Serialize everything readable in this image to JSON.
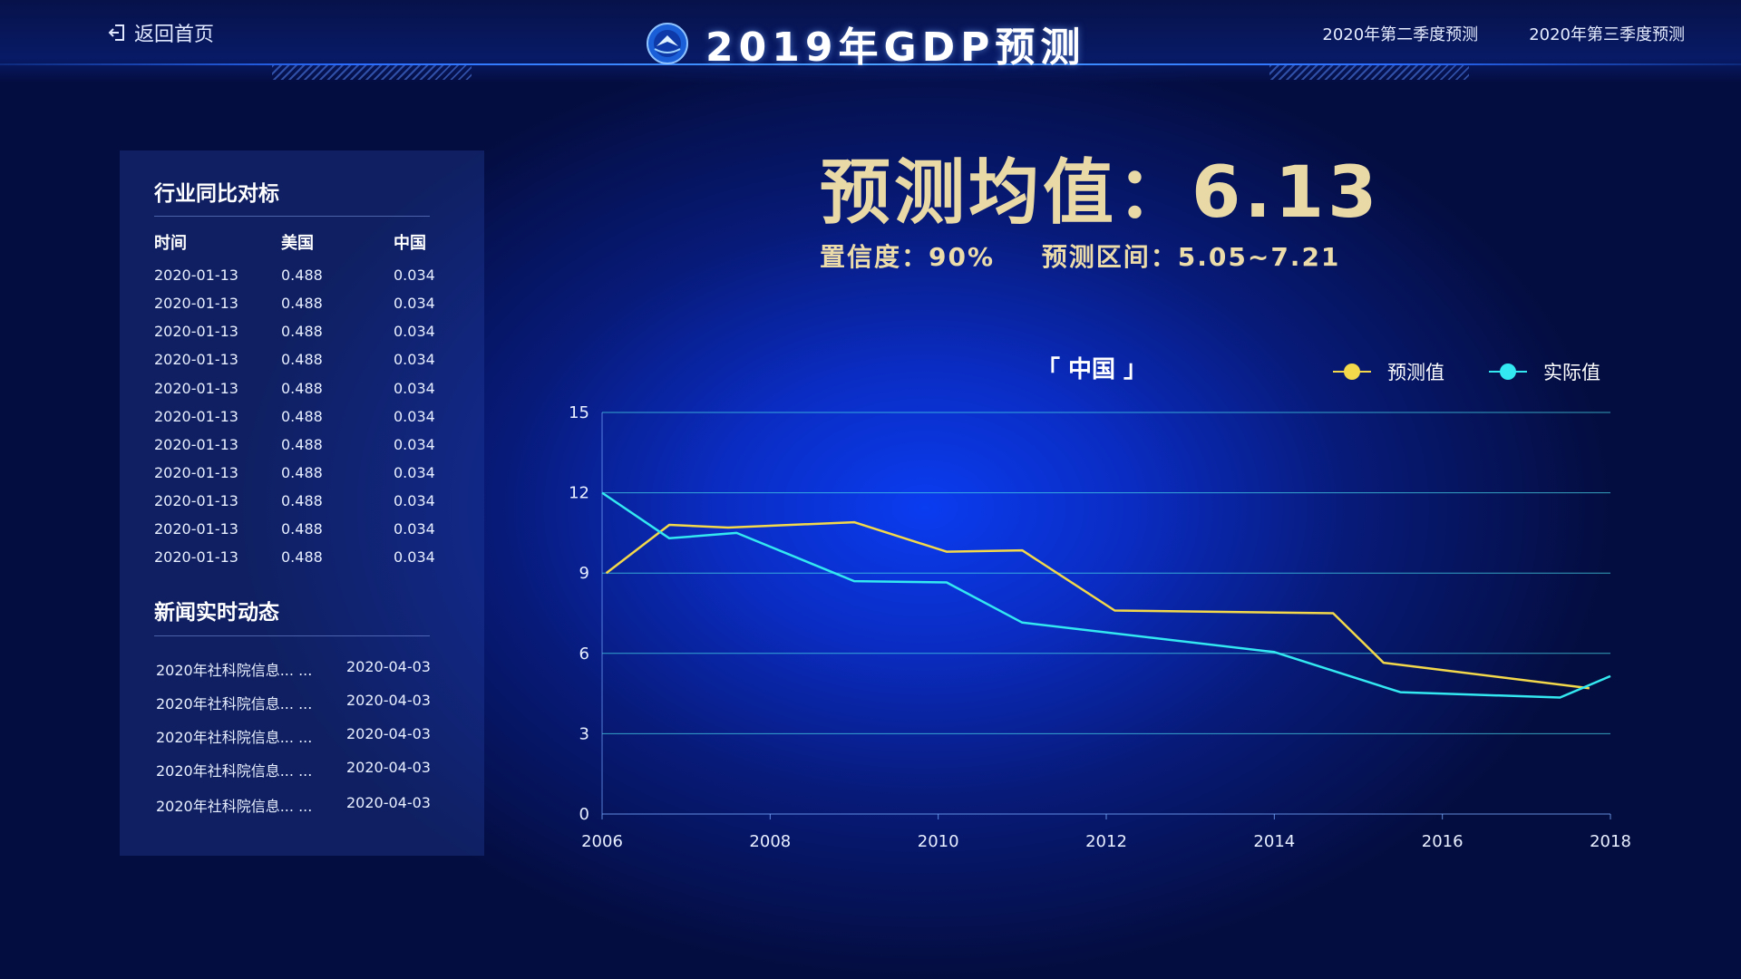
{
  "header": {
    "back_label": "返回首页",
    "title": "2019年GDP预测",
    "nav": [
      "2020年第二季度预测",
      "2020年第三季度预测"
    ]
  },
  "summary": {
    "mean_text": "预测均值：6.13",
    "confidence_text": "置信度：90%",
    "interval_text": "预测区间：5.05~7.21"
  },
  "industry": {
    "title": "行业同比对标",
    "columns": [
      "时间",
      "美国",
      "中国"
    ],
    "rows": [
      [
        "2020-01-13",
        "0.488",
        "0.034"
      ],
      [
        "2020-01-13",
        "0.488",
        "0.034"
      ],
      [
        "2020-01-13",
        "0.488",
        "0.034"
      ],
      [
        "2020-01-13",
        "0.488",
        "0.034"
      ],
      [
        "2020-01-13",
        "0.488",
        "0.034"
      ],
      [
        "2020-01-13",
        "0.488",
        "0.034"
      ],
      [
        "2020-01-13",
        "0.488",
        "0.034"
      ],
      [
        "2020-01-13",
        "0.488",
        "0.034"
      ],
      [
        "2020-01-13",
        "0.488",
        "0.034"
      ],
      [
        "2020-01-13",
        "0.488",
        "0.034"
      ],
      [
        "2020-01-13",
        "0.488",
        "0.034"
      ]
    ]
  },
  "news": {
    "title": "新闻实时动态",
    "items": [
      {
        "title": "2020年社科院信息... ...",
        "date": "2020-04-03"
      },
      {
        "title": "2020年社科院信息... ...",
        "date": "2020-04-03"
      },
      {
        "title": "2020年社科院信息... ...",
        "date": "2020-04-03"
      },
      {
        "title": "2020年社科院信息... ...",
        "date": "2020-04-03"
      },
      {
        "title": "2020年社科院信息... ...",
        "date": "2020-04-03"
      }
    ]
  },
  "colors": {
    "forecast": "#f2d84a",
    "actual": "#33e8f0",
    "gold_text": "#e9d9a6"
  },
  "chart_data": {
    "type": "line",
    "title": "「 中国 」",
    "xlim": [
      2006,
      2018
    ],
    "ylim": [
      0,
      15
    ],
    "x_ticks": [
      "2006",
      "2008",
      "2010",
      "2012",
      "2014",
      "2016",
      "2018"
    ],
    "y_ticks": [
      "0",
      "3",
      "6",
      "9",
      "12",
      "15"
    ],
    "grid": true,
    "legend": "top-right",
    "series": [
      {
        "name": "预测值",
        "x": [
          2006.05,
          2006.8,
          2007.5,
          2009.0,
          2010.1,
          2011.0,
          2012.1,
          2014.7,
          2015.3,
          2017.75
        ],
        "values": [
          9.0,
          10.8,
          10.7,
          10.9,
          9.8,
          9.85,
          7.6,
          7.5,
          5.65,
          4.7
        ]
      },
      {
        "name": "实际值",
        "x": [
          2006.0,
          2006.8,
          2007.6,
          2009.0,
          2010.1,
          2011.0,
          2014.0,
          2015.5,
          2017.4,
          2018.0
        ],
        "values": [
          12.0,
          10.3,
          10.5,
          8.7,
          8.65,
          7.15,
          6.05,
          4.55,
          4.35,
          5.15
        ]
      }
    ]
  }
}
